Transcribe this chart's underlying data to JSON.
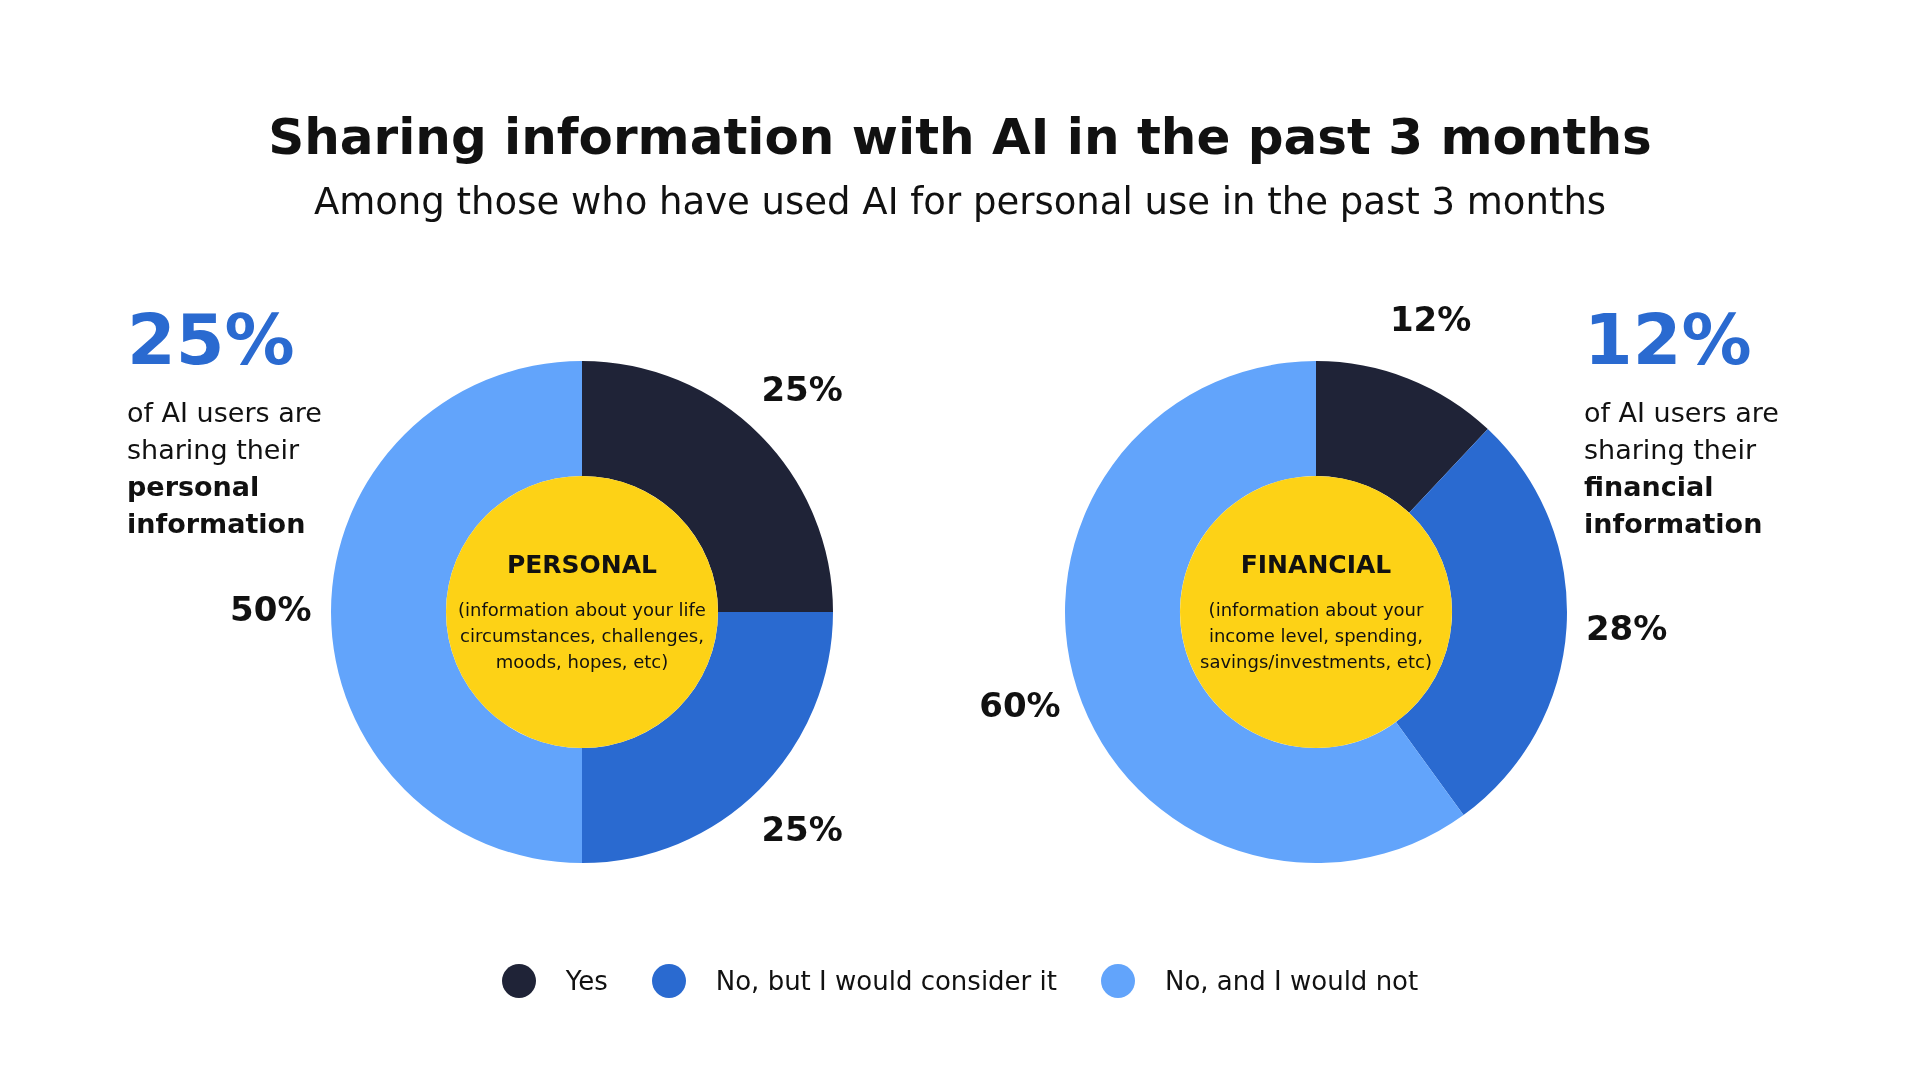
{
  "chart_data": [
    {
      "type": "donut",
      "title": "Sharing information with AI in the past 3 months",
      "subtitle": "Among those who have used AI for personal use in the past 3 months",
      "categories": [
        "Yes",
        "No, but I would consider it",
        "No, and I would not"
      ],
      "values": [
        25,
        25,
        50
      ],
      "colors": [
        "#1f2337",
        "#2a6ad0",
        "#62a4fb"
      ],
      "value_labels": [
        "25%",
        "25%",
        "50%"
      ],
      "legend": "bottom",
      "annotations": [
        "PERSONAL",
        "(information about your life circumstances, challenges, moods, hopes, etc)",
        "25%",
        "of AI users are sharing their",
        "personal information"
      ]
    },
    {
      "type": "donut",
      "categories": [
        null,
        null,
        null
      ],
      "values": [
        12,
        28,
        60
      ],
      "colors": [
        "#1f2337",
        "#2a6ad0",
        "#62a4fb"
      ],
      "value_labels": [
        "12%",
        "28%",
        "60%"
      ],
      "annotations": [
        "FINANCIAL",
        "(information about your income level, spending, savings/investments, etc)",
        "12%",
        "of AI users are sharing their",
        "financial information"
      ]
    }
  ]
}
